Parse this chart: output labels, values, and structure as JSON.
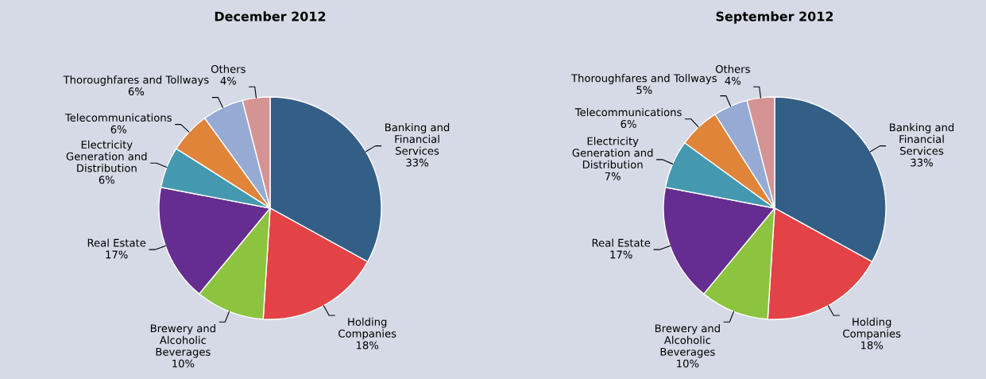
{
  "chart_data": [
    {
      "type": "pie",
      "title": "December 2012",
      "categories": [
        "Banking and\nFinancial\nServices",
        "Holding\nCompanies",
        "Brewery and\nAlcoholic\nBeverages",
        "Real Estate",
        "Electricity\nGeneration and\nDistribution",
        "Telecommunications",
        "Thoroughfares and Tollways",
        "Others"
      ],
      "values": [
        33,
        18,
        10,
        17,
        6,
        6,
        6,
        4
      ],
      "value_labels": [
        "33%",
        "18%",
        "10%",
        "17%",
        "6%",
        "6%",
        "6%",
        "4%"
      ],
      "colors": [
        "#335f87",
        "#e34346",
        "#8cc43f",
        "#652d8f",
        "#4499b0",
        "#e0843a",
        "#96abd4",
        "#d49494"
      ]
    },
    {
      "type": "pie",
      "title": "September 2012",
      "categories": [
        "Banking and\nFinancial\nServices",
        "Holding\nCompanies",
        "Brewery and\nAlcoholic\nBeverages",
        "Real Estate",
        "Electricity\nGeneration and\nDistribution",
        "Telecommunications",
        "Thoroughfares and Tollways",
        "Others"
      ],
      "values": [
        33,
        18,
        10,
        17,
        7,
        6,
        5,
        4
      ],
      "value_labels": [
        "33%",
        "18%",
        "10%",
        "17%",
        "7%",
        "6%",
        "5%",
        "4%"
      ],
      "colors": [
        "#335f87",
        "#e34346",
        "#8cc43f",
        "#652d8f",
        "#4499b0",
        "#e0843a",
        "#96abd4",
        "#d49494"
      ]
    }
  ]
}
